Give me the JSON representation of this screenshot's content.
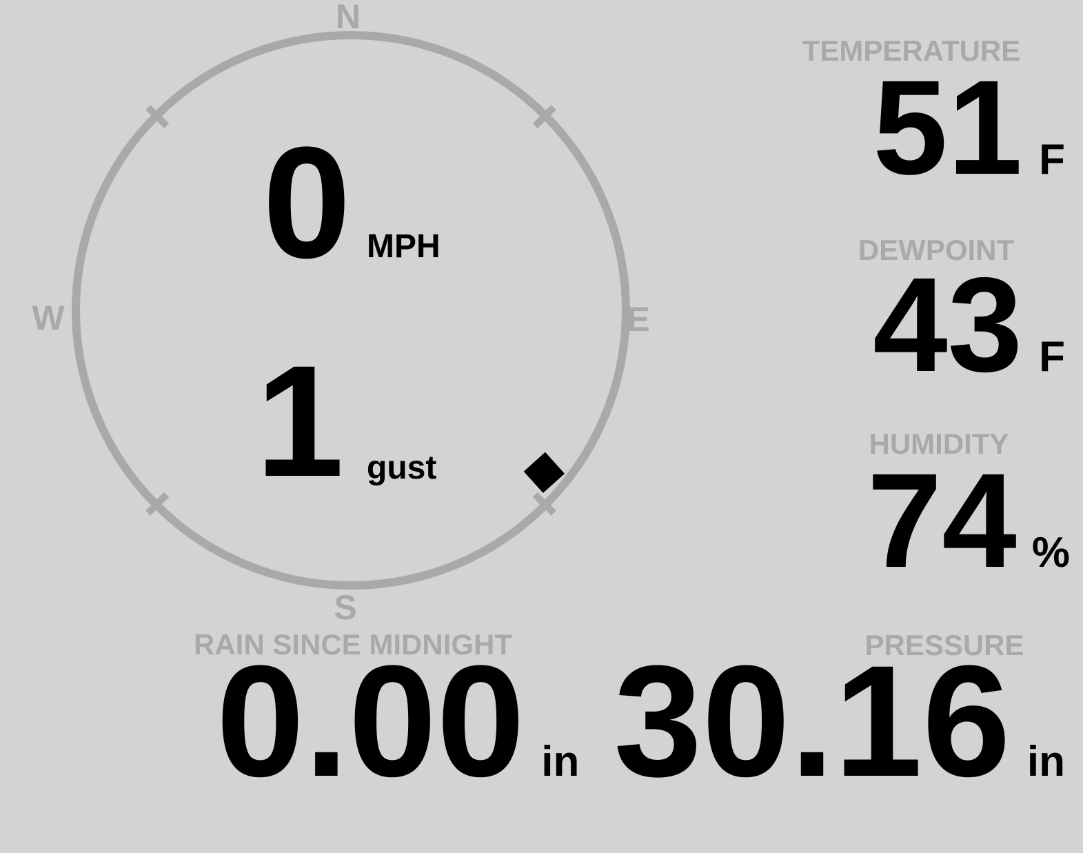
{
  "colors": {
    "background": "#d3d3d3",
    "muted_gray": "#a9a9a9",
    "foreground": "#000000"
  },
  "wind": {
    "speed_value": "0",
    "speed_unit": "MPH",
    "gust_value": "1",
    "gust_label": "gust",
    "direction_degrees": 130,
    "compass": {
      "north": "N",
      "east": "E",
      "south": "S",
      "west": "W"
    }
  },
  "temperature": {
    "label": "TEMPERATURE",
    "value": "51",
    "unit": "F"
  },
  "dewpoint": {
    "label": "DEWPOINT",
    "value": "43",
    "unit": "F"
  },
  "humidity": {
    "label": "HUMIDITY",
    "value": "74",
    "unit": "%"
  },
  "rain": {
    "label": "RAIN SINCE MIDNIGHT",
    "value": "0.00",
    "unit": "in"
  },
  "pressure": {
    "label": "PRESSURE",
    "value": "30.16",
    "unit": "in"
  }
}
